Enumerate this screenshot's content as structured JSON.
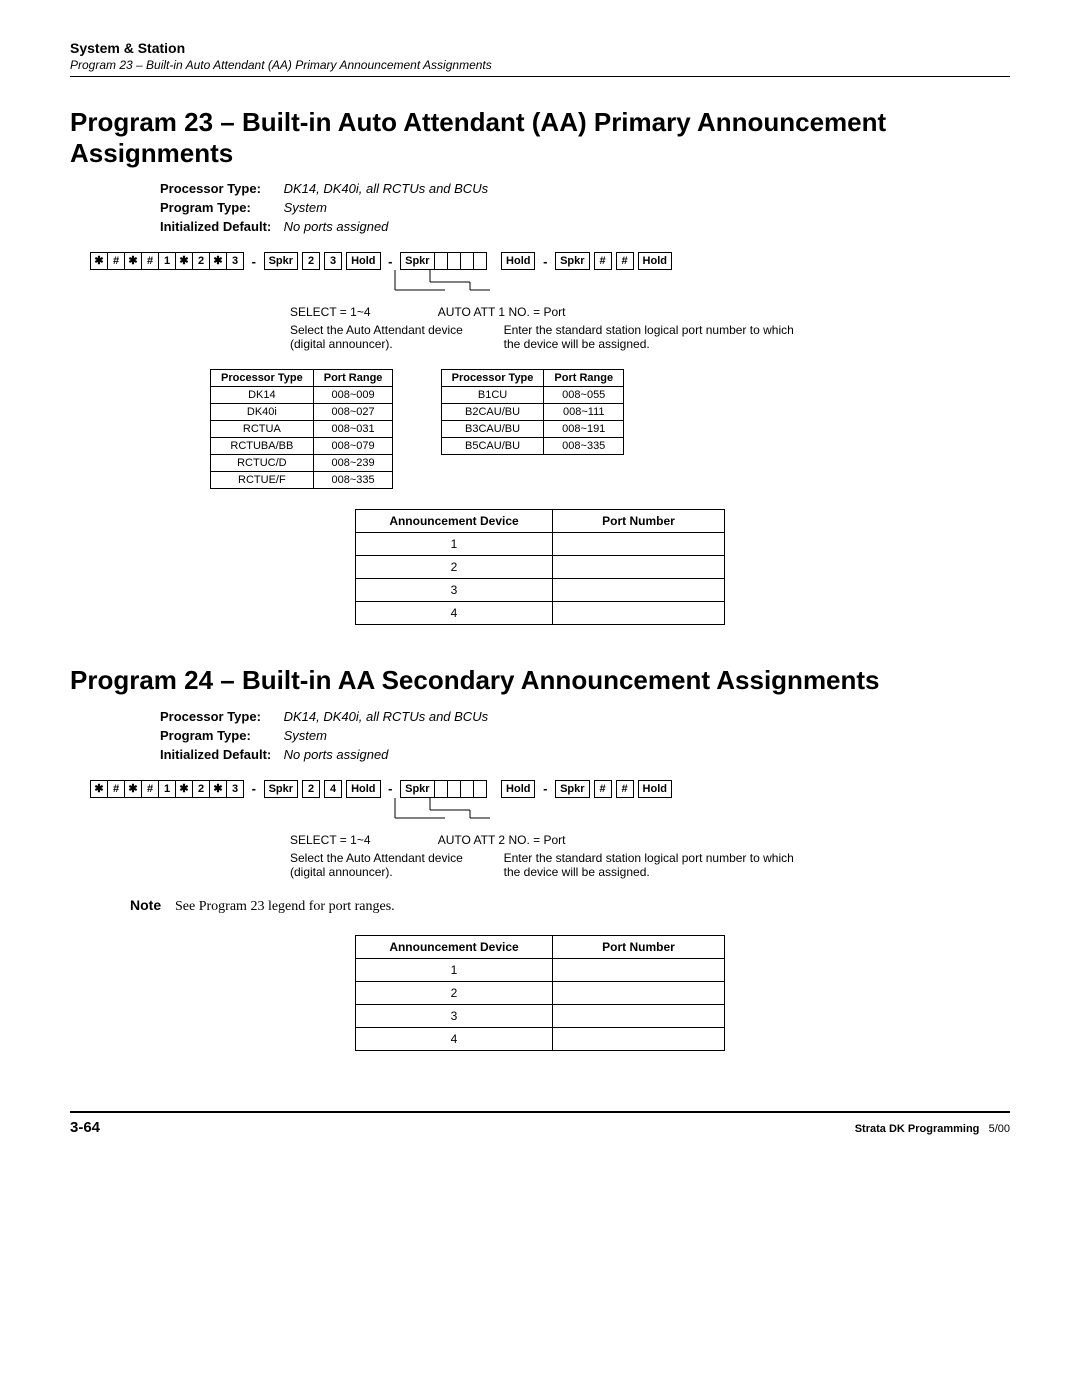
{
  "header": {
    "section": "System & Station",
    "sub": "Program 23 – Built-in Auto Attendant (AA) Primary Announcement Assignments"
  },
  "prog23": {
    "title": "Program 23 – Built-in Auto Attendant (AA) Primary Announcement Assignments",
    "meta": {
      "processor_label": "Processor Type:",
      "processor_val": "DK14, DK40i, all RCTUs and BCUs",
      "program_label": "Program Type:",
      "program_val": "System",
      "default_label": "Initialized Default:",
      "default_val": "No ports assigned"
    },
    "keys_prefix": [
      "✱",
      "#",
      "✱",
      "#",
      "1",
      "✱",
      "2",
      "✱",
      "3"
    ],
    "keys_seq1": [
      "Spkr",
      "2",
      "3",
      "Hold"
    ],
    "keys_seq2": [
      "Spkr"
    ],
    "keys_seq3": [
      "Hold"
    ],
    "keys_seq4": [
      "Spkr",
      "#",
      "#",
      "Hold"
    ],
    "select_label": "SELECT = 1~4",
    "auto_label": "AUTO ATT 1 NO. = Port",
    "desc_left": "Select the Auto Attendant device (digital announcer).",
    "desc_right": "Enter the standard station logical port number to which the device will be assigned.",
    "table_left": {
      "headers": [
        "Processor Type",
        "Port Range"
      ],
      "rows": [
        [
          "DK14",
          "008~009"
        ],
        [
          "DK40i",
          "008~027"
        ],
        [
          "RCTUA",
          "008~031"
        ],
        [
          "RCTUBA/BB",
          "008~079"
        ],
        [
          "RCTUC/D",
          "008~239"
        ],
        [
          "RCTUE/F",
          "008~335"
        ]
      ]
    },
    "table_right": {
      "headers": [
        "Processor Type",
        "Port Range"
      ],
      "rows": [
        [
          "B1CU",
          "008~055"
        ],
        [
          "B2CAU/BU",
          "008~111"
        ],
        [
          "B3CAU/BU",
          "008~191"
        ],
        [
          "B5CAU/BU",
          "008~335"
        ]
      ]
    },
    "ann_table": {
      "headers": [
        "Announcement Device",
        "Port Number"
      ],
      "rows": [
        [
          "1",
          ""
        ],
        [
          "2",
          ""
        ],
        [
          "3",
          ""
        ],
        [
          "4",
          ""
        ]
      ]
    }
  },
  "prog24": {
    "title": "Program 24 – Built-in AA Secondary Announcement Assignments",
    "meta": {
      "processor_label": "Processor Type:",
      "processor_val": "DK14, DK40i, all RCTUs and BCUs",
      "program_label": "Program Type:",
      "program_val": "System",
      "default_label": "Initialized Default:",
      "default_val": "No ports assigned"
    },
    "keys_prefix": [
      "✱",
      "#",
      "✱",
      "#",
      "1",
      "✱",
      "2",
      "✱",
      "3"
    ],
    "keys_seq1": [
      "Spkr",
      "2",
      "4",
      "Hold"
    ],
    "keys_seq2": [
      "Spkr"
    ],
    "keys_seq3": [
      "Hold"
    ],
    "keys_seq4": [
      "Spkr",
      "#",
      "#",
      "Hold"
    ],
    "select_label": "SELECT = 1~4",
    "auto_label": "AUTO ATT 2 NO. = Port",
    "desc_left": "Select the Auto Attendant device (digital announcer).",
    "desc_right": "Enter the standard station logical port number to which the device will be assigned.",
    "note_label": "Note",
    "note_text": "See Program 23 legend for port ranges.",
    "ann_table": {
      "headers": [
        "Announcement Device",
        "Port Number"
      ],
      "rows": [
        [
          "1",
          ""
        ],
        [
          "2",
          ""
        ],
        [
          "3",
          ""
        ],
        [
          "4",
          ""
        ]
      ]
    }
  },
  "footer": {
    "page": "3-64",
    "title": "Strata DK Programming",
    "date": "5/00"
  }
}
